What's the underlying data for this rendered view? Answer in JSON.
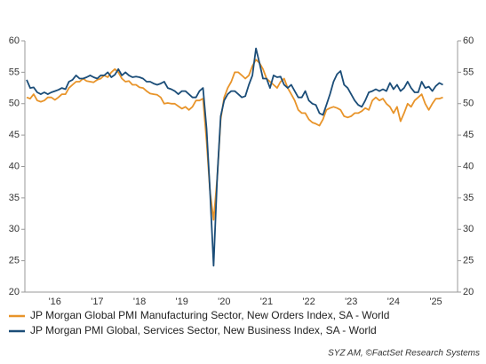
{
  "chart_data": {
    "type": "line",
    "categories": [
      null,
      null,
      null,
      null,
      null,
      null,
      null,
      null,
      "'16",
      null,
      null,
      null,
      null,
      null,
      null,
      null,
      null,
      null,
      null,
      null,
      "'17",
      null,
      null,
      null,
      null,
      null,
      null,
      null,
      null,
      null,
      null,
      null,
      "'18",
      null,
      null,
      null,
      null,
      null,
      null,
      null,
      null,
      null,
      null,
      null,
      "'19",
      null,
      null,
      null,
      null,
      null,
      null,
      null,
      null,
      null,
      null,
      null,
      "'20",
      null,
      null,
      null,
      null,
      null,
      null,
      null,
      null,
      null,
      null,
      null,
      "'21",
      null,
      null,
      null,
      null,
      null,
      null,
      null,
      null,
      null,
      null,
      null,
      "'22",
      null,
      null,
      null,
      null,
      null,
      null,
      null,
      null,
      null,
      null,
      null,
      "'23",
      null,
      null,
      null,
      null,
      null,
      null,
      null,
      null,
      null,
      null,
      null,
      "'24",
      null,
      null,
      null,
      null,
      null,
      null,
      null,
      null,
      null,
      null,
      null,
      "'25",
      null,
      null
    ],
    "series": [
      {
        "name": "JP Morgan Global PMI Manufacturing Sector, New Orders Index, SA - World",
        "color": "#e8942a",
        "values": [
          51,
          50.8,
          51.5,
          50.5,
          50.3,
          50.5,
          51,
          51,
          50.6,
          51,
          51.5,
          51.5,
          52.5,
          53,
          53.5,
          53.5,
          54,
          53.6,
          53.5,
          53.4,
          53.8,
          54,
          54.5,
          54.2,
          55,
          55.5,
          55,
          54,
          53.5,
          53.6,
          53,
          53,
          52.6,
          52.5,
          52,
          51.6,
          51.5,
          51.4,
          51,
          50,
          50.1,
          50,
          50,
          49.6,
          49.2,
          49.5,
          49,
          49.5,
          50.5,
          50.5,
          50.8,
          44,
          36,
          31.5,
          38,
          47.5,
          51,
          52.5,
          53.5,
          55,
          55,
          54.5,
          54,
          54.5,
          56,
          57,
          56.5,
          55.5,
          54,
          53.5,
          53,
          52.5,
          53.5,
          54,
          52.5,
          51.5,
          50.5,
          49,
          48.5,
          48.5,
          47.5,
          47,
          46.8,
          46.5,
          47.5,
          49,
          49.3,
          49.5,
          49.3,
          49,
          48,
          47.8,
          48,
          48.5,
          48.5,
          48.8,
          49.3,
          49,
          50.5,
          51,
          50.5,
          50.8,
          50,
          49.5,
          48.5,
          49.5,
          47.2,
          48.5,
          50,
          49.5,
          50.5,
          51,
          51.5,
          50,
          49,
          50,
          50.8,
          50.8,
          51
        ]
      },
      {
        "name": "JP Morgan PMI Global, Services Sector, New Business Index, SA - World",
        "color": "#1b4d78",
        "values": [
          53.8,
          52.5,
          52.6,
          51.8,
          51.5,
          51.8,
          51.5,
          51.8,
          52,
          52.2,
          52.5,
          52.3,
          53.5,
          53.8,
          54.5,
          54,
          54,
          54.2,
          54.5,
          54.2,
          54,
          54.5,
          54.5,
          55,
          54.2,
          54.6,
          55.5,
          54.5,
          55,
          54.5,
          54.2,
          54.3,
          54.2,
          54,
          53.5,
          53.5,
          53.2,
          53,
          53.2,
          53.5,
          52.5,
          52.3,
          52,
          51.5,
          52,
          52,
          51.5,
          51,
          51,
          52,
          52.5,
          46,
          36,
          24.2,
          38,
          48,
          50.5,
          51.5,
          52,
          52,
          51.5,
          51,
          51.2,
          53,
          54.5,
          58.8,
          56.5,
          54,
          54,
          52.5,
          54.5,
          54.2,
          54.3,
          53,
          52.5,
          53,
          52,
          51,
          51,
          52,
          50.5,
          50,
          49.8,
          48.5,
          48.2,
          49.8,
          51.5,
          53.5,
          54.7,
          55.2,
          53,
          52.5,
          51.5,
          50.5,
          49.8,
          49.5,
          50.5,
          51.8,
          52,
          52.3,
          52,
          52.3,
          52,
          53.3,
          52.3,
          53,
          52,
          52.5,
          53.5,
          52.5,
          51.8,
          51.8,
          53.5,
          52.5,
          52.7,
          52,
          52.8,
          53.3,
          53
        ]
      }
    ],
    "ylim": [
      20,
      60
    ],
    "yticks": [
      20,
      25,
      30,
      35,
      40,
      45,
      50,
      55,
      60
    ],
    "y2lim": [
      20,
      60
    ],
    "y2ticks": [
      20,
      25,
      30,
      35,
      40,
      45,
      50,
      55,
      60
    ],
    "legend": "bottom",
    "source": "SYZ AM, ©FactSet Research Systems"
  }
}
